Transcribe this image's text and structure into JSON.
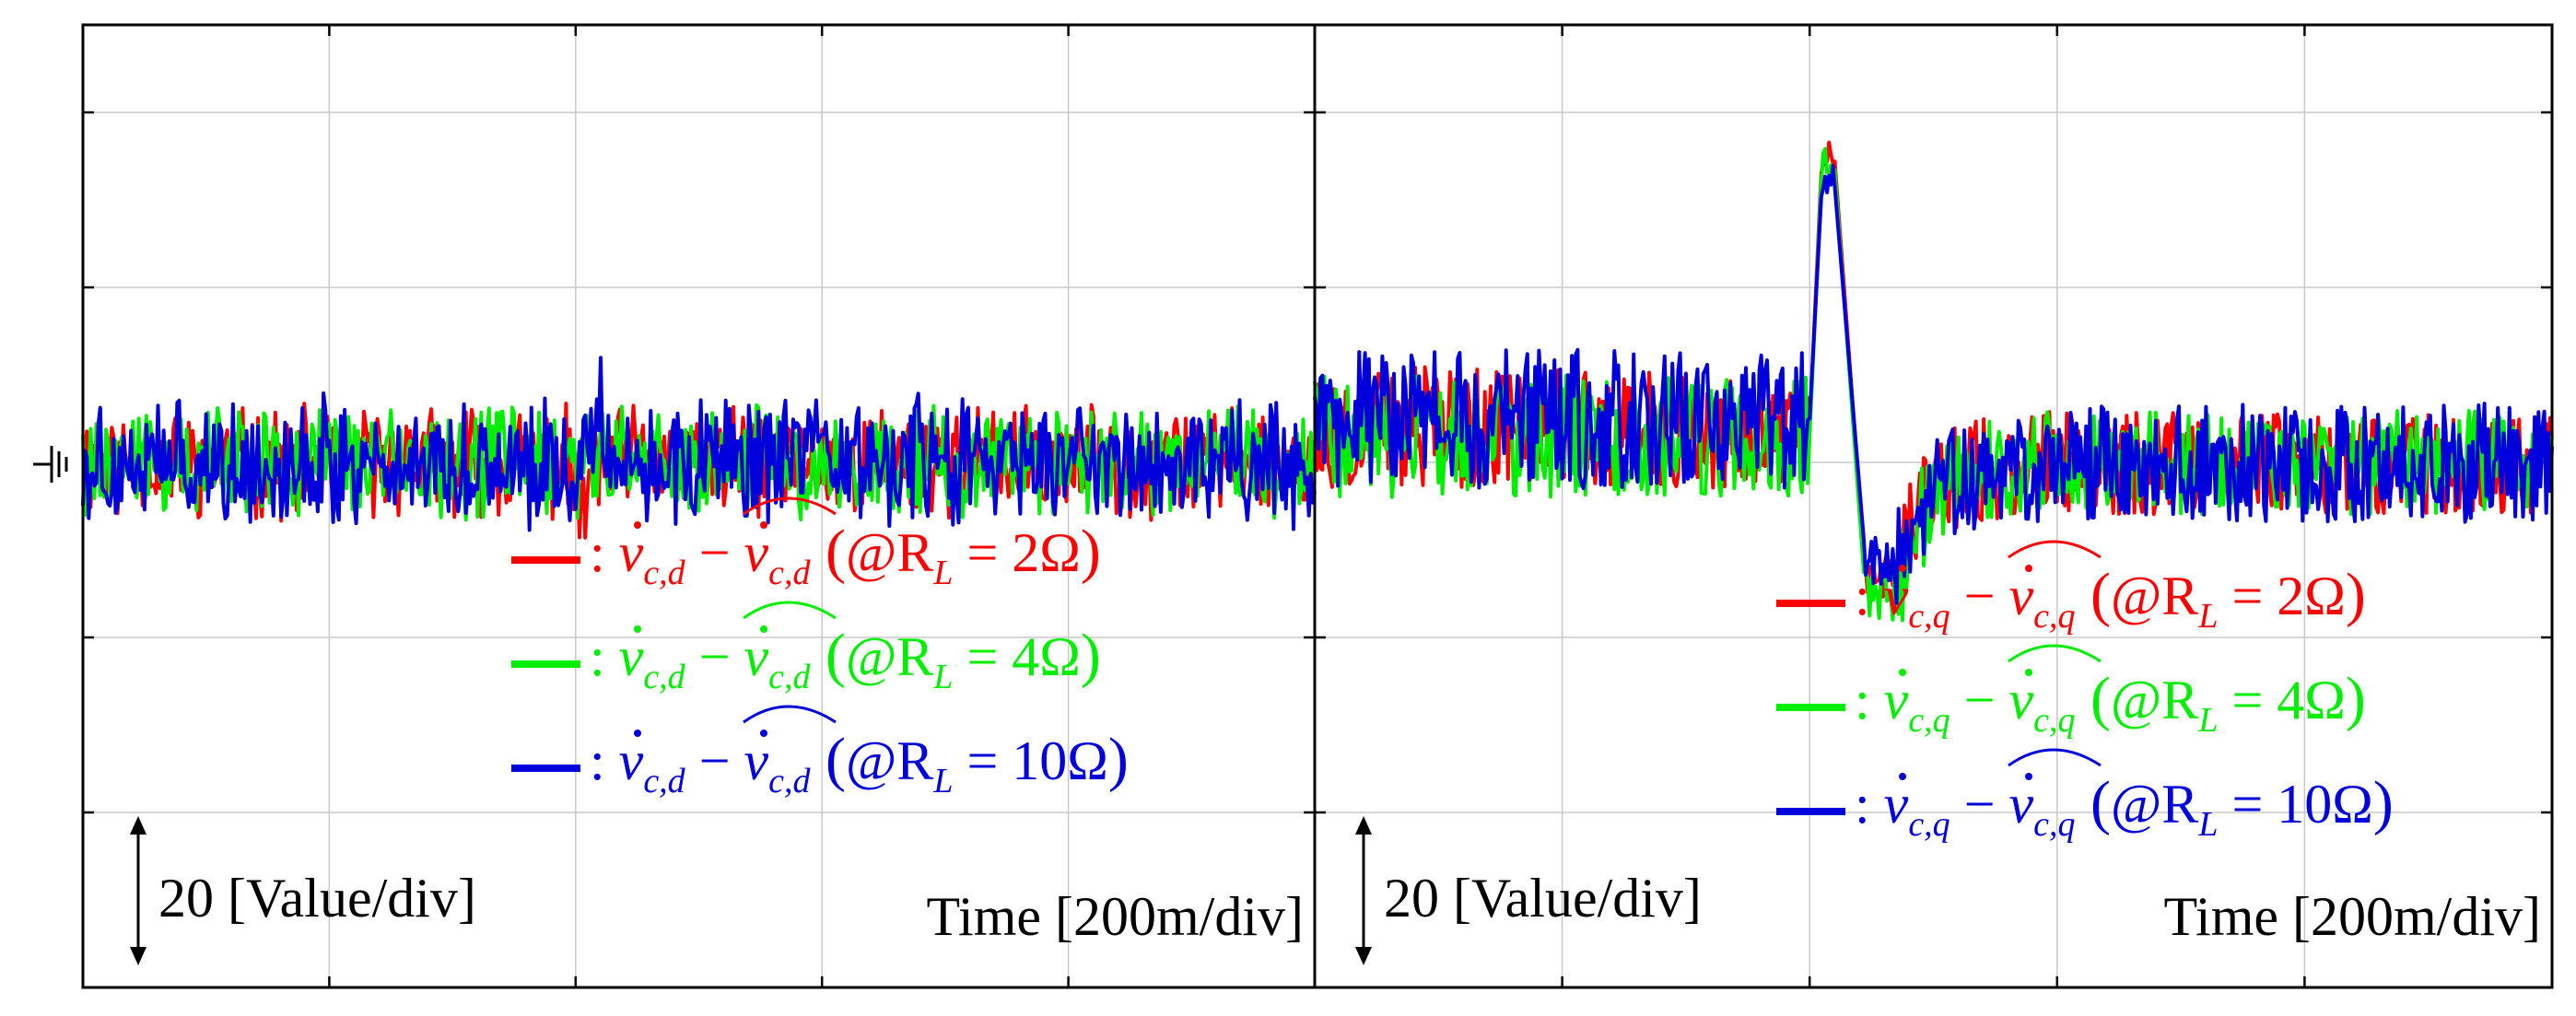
{
  "chart_data": [
    {
      "type": "line",
      "panel": "left",
      "x_scale_label": "Time [200m/div]",
      "y_scale_label": "20 [Value/div]",
      "xlim": [
        0,
        1000
      ],
      "ylim": [
        -60,
        50
      ],
      "x_divisions": 5,
      "y_divisions": 5.5,
      "grid": true,
      "ground_marker": "ground-symbol",
      "legend_position": "bottom-right",
      "series": [
        {
          "name": "v_c,d error @ R_L = 2Ω",
          "color": "#ff0000",
          "noise_amplitude": 5,
          "events": [
            {
              "t": 405,
              "value": -4
            }
          ]
        },
        {
          "name": "v_c,d error @ R_L = 4Ω",
          "color": "#00ee00",
          "noise_amplitude": 5,
          "events": []
        },
        {
          "name": "v_c,d error @ R_L = 10Ω",
          "color": "#0000dd",
          "noise_amplitude": 6,
          "events": [
            {
              "t": 420,
              "value": 5
            }
          ]
        }
      ],
      "legend": [
        {
          "color": "#ff0000",
          "sub": "c,d",
          "rl_value": "2Ω"
        },
        {
          "color": "#00ee00",
          "sub": "c,d",
          "rl_value": "4Ω"
        },
        {
          "color": "#0000dd",
          "sub": "c,d",
          "rl_value": "10Ω"
        }
      ]
    },
    {
      "type": "line",
      "panel": "right",
      "x_scale_label": "Time [200m/div]",
      "y_scale_label": "20 [Value/div]",
      "xlim": [
        0,
        1000
      ],
      "ylim": [
        -60,
        50
      ],
      "x_divisions": 5,
      "y_divisions": 5.5,
      "grid": true,
      "legend_position": "bottom-right",
      "load_step_time": 400,
      "series": [
        {
          "name": "v_c,q error @ R_L = 2Ω",
          "color": "#ff0000",
          "pre_offset": 4,
          "peak": 35,
          "dip": -13,
          "noise_amplitude": 7
        },
        {
          "name": "v_c,q error @ R_L = 4Ω",
          "color": "#00ee00",
          "pre_offset": 3,
          "peak": 34,
          "dip": -15,
          "noise_amplitude": 7
        },
        {
          "name": "v_c,q error @ R_L = 10Ω",
          "color": "#0000dd",
          "pre_offset": 5,
          "peak": 32,
          "dip": -11,
          "noise_amplitude": 8
        }
      ],
      "legend": [
        {
          "color": "#ff0000",
          "sub": "c,q",
          "rl_value": "2Ω"
        },
        {
          "color": "#00ee00",
          "sub": "c,q",
          "rl_value": "4Ω"
        },
        {
          "color": "#0000dd",
          "sub": "c,q",
          "rl_value": "10Ω"
        }
      ]
    }
  ],
  "legend_text": {
    "colon": ":",
    "base": "v",
    "minus": "−",
    "open": "(",
    "at": "@R",
    "rl_sub": "L",
    "equals": "=",
    "close": ")"
  }
}
